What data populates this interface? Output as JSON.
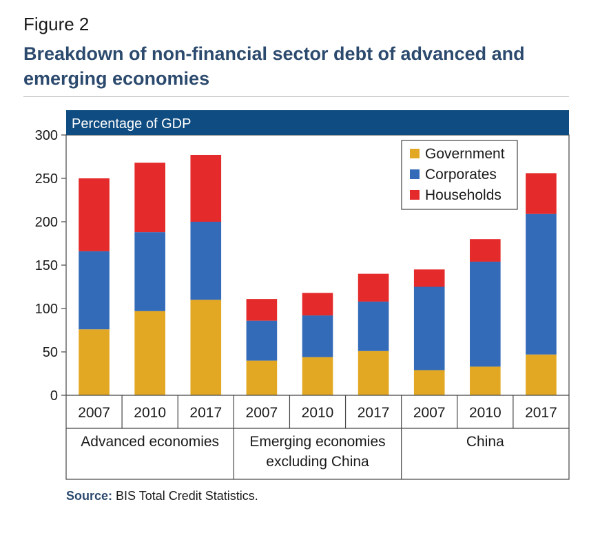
{
  "figure_label": "Figure 2",
  "title": "Breakdown of non-financial sector debt of advanced and emerging economies",
  "source": {
    "label": "Source:",
    "text": "BIS Total Credit Statistics."
  },
  "colors": {
    "Government": "#e3a823",
    "Corporates": "#346bb8",
    "Households": "#e42a2a",
    "header": "#0f4c81"
  },
  "chart_data": {
    "type": "bar",
    "stacked": true,
    "unit_label": "Percentage of GDP",
    "ylim": [
      0,
      300
    ],
    "yticks": [
      0,
      50,
      100,
      150,
      200,
      250,
      300
    ],
    "groups": [
      {
        "label": "Advanced economies",
        "categories": [
          "2007",
          "2010",
          "2017"
        ]
      },
      {
        "label": "Emerging economies excluding China",
        "categories": [
          "2007",
          "2010",
          "2017"
        ]
      },
      {
        "label": "China",
        "categories": [
          "2007",
          "2010",
          "2017"
        ]
      }
    ],
    "series": [
      {
        "name": "Government",
        "values": [
          76,
          97,
          110,
          40,
          44,
          51,
          29,
          33,
          47
        ]
      },
      {
        "name": "Corporates",
        "values": [
          90,
          91,
          90,
          46,
          48,
          57,
          96,
          121,
          162
        ]
      },
      {
        "name": "Households",
        "values": [
          84,
          80,
          77,
          25,
          26,
          32,
          20,
          26,
          47
        ]
      }
    ],
    "legend": {
      "position": "top-right",
      "entries": [
        "Government",
        "Corporates",
        "Households"
      ]
    },
    "grid": false
  }
}
